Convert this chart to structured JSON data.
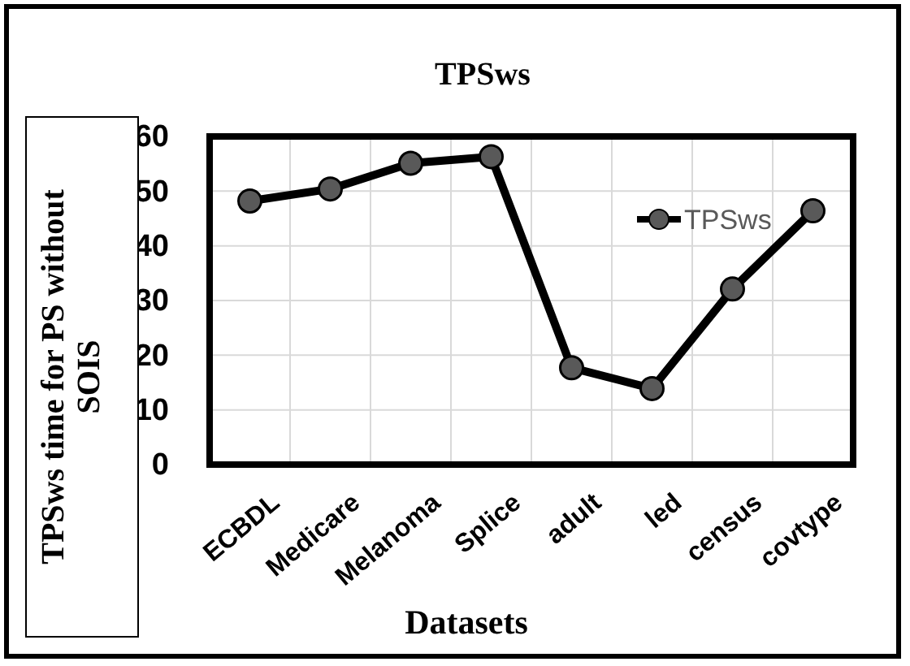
{
  "chart_data": {
    "type": "line",
    "title": "TPSws",
    "xlabel": "Datasets",
    "ylabel": "TPSws time for PS without SOIS",
    "categories": [
      "ECBDL",
      "Medicare",
      "Melanoma",
      "Splice",
      "adult",
      "led",
      "census",
      "covtype"
    ],
    "series": [
      {
        "name": "TPSws",
        "color": "#000000",
        "values": [
          48.2,
          50.4,
          55.1,
          56.3,
          17.7,
          13.9,
          32.1,
          46.4
        ]
      }
    ],
    "ylim": [
      0,
      60
    ],
    "yticks": [
      0,
      10,
      20,
      30,
      40,
      50,
      60
    ],
    "grid": true,
    "legend": "top right",
    "marker": "circle",
    "line_style": "solid"
  }
}
